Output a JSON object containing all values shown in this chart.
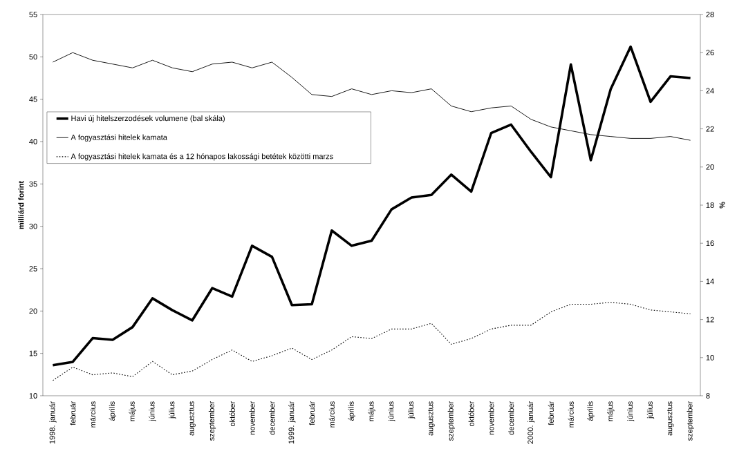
{
  "chart_data": {
    "type": "line",
    "ylabel": "milliárd forint",
    "y2label": "%",
    "categories": [
      "1998. január",
      "február",
      "március",
      "április",
      "május",
      "június",
      "július",
      "augusztus",
      "szeptember",
      "október",
      "november",
      "december",
      "1999. január",
      "február",
      "március",
      "április",
      "május",
      "június",
      "július",
      "augusztus",
      "szeptember",
      "október",
      "november",
      "december",
      "2000. január",
      "február",
      "március",
      "április",
      "május",
      "június",
      "július",
      "augusztus",
      "szeptember"
    ],
    "series": [
      {
        "name": "Havi új hitelszerzodések volumene (bal skála)",
        "color": "#000000",
        "line_style": "solid",
        "values": [
          13.6,
          14.0,
          16.8,
          16.6,
          18.1,
          21.5,
          20.1,
          18.9,
          22.7,
          21.7,
          27.7,
          26.4,
          20.7,
          20.8,
          29.5,
          27.7,
          28.3,
          32.0,
          33.4,
          33.7,
          36.1,
          34.1,
          41.0,
          42.0,
          38.8,
          35.8,
          49.1,
          37.8,
          46.2,
          51.2,
          44.7,
          47.7,
          47.5
        ]
      },
      {
        "name": "A fogyasztási hitelek kamata",
        "color": "#000000",
        "line_style": "solid",
        "axis": "y2",
        "values": [
          25.5,
          26.0,
          25.6,
          25.4,
          25.2,
          25.6,
          25.2,
          25.0,
          25.4,
          25.5,
          25.2,
          25.5,
          24.7,
          23.8,
          23.7,
          24.1,
          23.8,
          24.0,
          23.9,
          24.1,
          23.2,
          22.9,
          23.1,
          23.2,
          22.5,
          22.1,
          21.9,
          21.7,
          21.6,
          21.5,
          21.5,
          21.6,
          21.4
        ]
      },
      {
        "name": "A fogyasztási hitelek kamata és a 12 hónapos lakossági betétek közötti marzs",
        "color": "#000000",
        "line_style": "dotted",
        "axis": "y2",
        "values": [
          8.8,
          9.5,
          9.1,
          9.2,
          9.0,
          9.8,
          9.1,
          9.3,
          9.9,
          10.4,
          9.8,
          10.1,
          10.5,
          9.9,
          10.4,
          11.1,
          11.0,
          11.5,
          11.5,
          11.8,
          10.7,
          11.0,
          11.5,
          11.7,
          11.7,
          12.4,
          12.8,
          12.8,
          12.9,
          12.8,
          12.5,
          12.4,
          12.3
        ]
      }
    ],
    "ylim": [
      10,
      55
    ],
    "yticks": [
      10,
      15,
      20,
      25,
      30,
      35,
      40,
      45,
      50,
      55
    ],
    "y2lim": [
      8,
      28
    ],
    "y2ticks": [
      8,
      10,
      12,
      14,
      16,
      18,
      20,
      22,
      24,
      26,
      28
    ],
    "legend": "left",
    "marker": "none"
  }
}
